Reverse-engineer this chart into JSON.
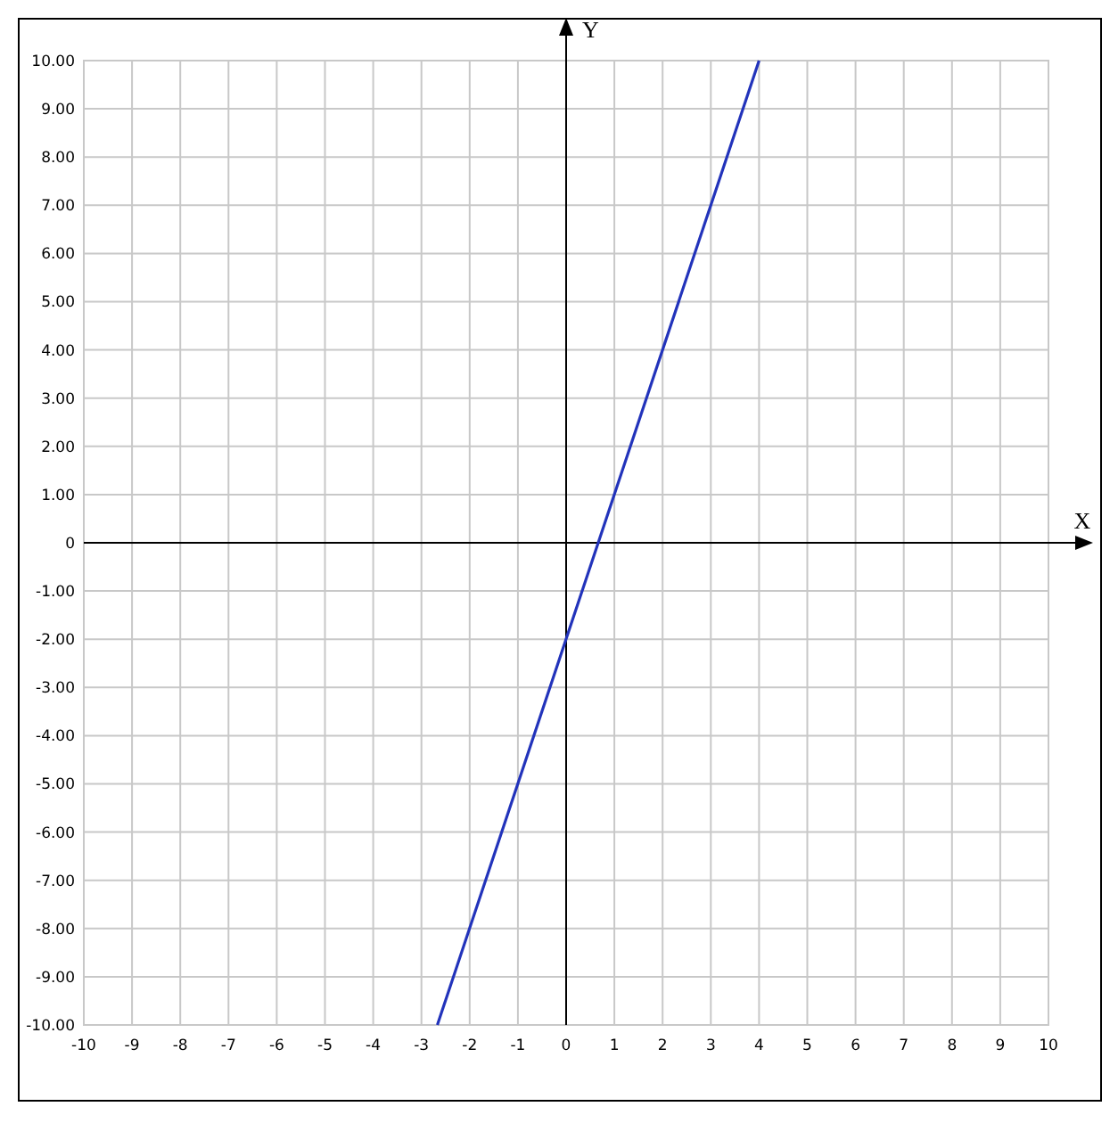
{
  "chart_data": {
    "type": "line",
    "xlabel": "X",
    "ylabel": "Y",
    "xlim": [
      -10,
      10
    ],
    "ylim": [
      -10,
      10
    ],
    "xticks": [
      -10,
      -9,
      -8,
      -7,
      -6,
      -5,
      -4,
      -3,
      -2,
      -1,
      0,
      1,
      2,
      3,
      4,
      5,
      6,
      7,
      8,
      9,
      10
    ],
    "yticks": [
      {
        "value": -10,
        "label": "-10.00"
      },
      {
        "value": -9,
        "label": "-9.00"
      },
      {
        "value": -8,
        "label": "-8.00"
      },
      {
        "value": -7,
        "label": "-7.00"
      },
      {
        "value": -6,
        "label": "-6.00"
      },
      {
        "value": -5,
        "label": "-5.00"
      },
      {
        "value": -4,
        "label": "-4.00"
      },
      {
        "value": -3,
        "label": "-3.00"
      },
      {
        "value": -2,
        "label": "-2.00"
      },
      {
        "value": -1,
        "label": "-1.00"
      },
      {
        "value": 0,
        "label": "0"
      },
      {
        "value": 1,
        "label": "1.00"
      },
      {
        "value": 2,
        "label": "2.00"
      },
      {
        "value": 3,
        "label": "3.00"
      },
      {
        "value": 4,
        "label": "4.00"
      },
      {
        "value": 5,
        "label": "5.00"
      },
      {
        "value": 6,
        "label": "6.00"
      },
      {
        "value": 7,
        "label": "7.00"
      },
      {
        "value": 8,
        "label": "8.00"
      },
      {
        "value": 9,
        "label": "9.00"
      },
      {
        "value": 10,
        "label": "10.00"
      }
    ],
    "grid": true,
    "marker": "none",
    "line_style": "solid",
    "series": [
      {
        "color": "#2233bb",
        "x": [
          -2.67,
          4
        ],
        "values": [
          -10,
          10
        ]
      }
    ]
  }
}
